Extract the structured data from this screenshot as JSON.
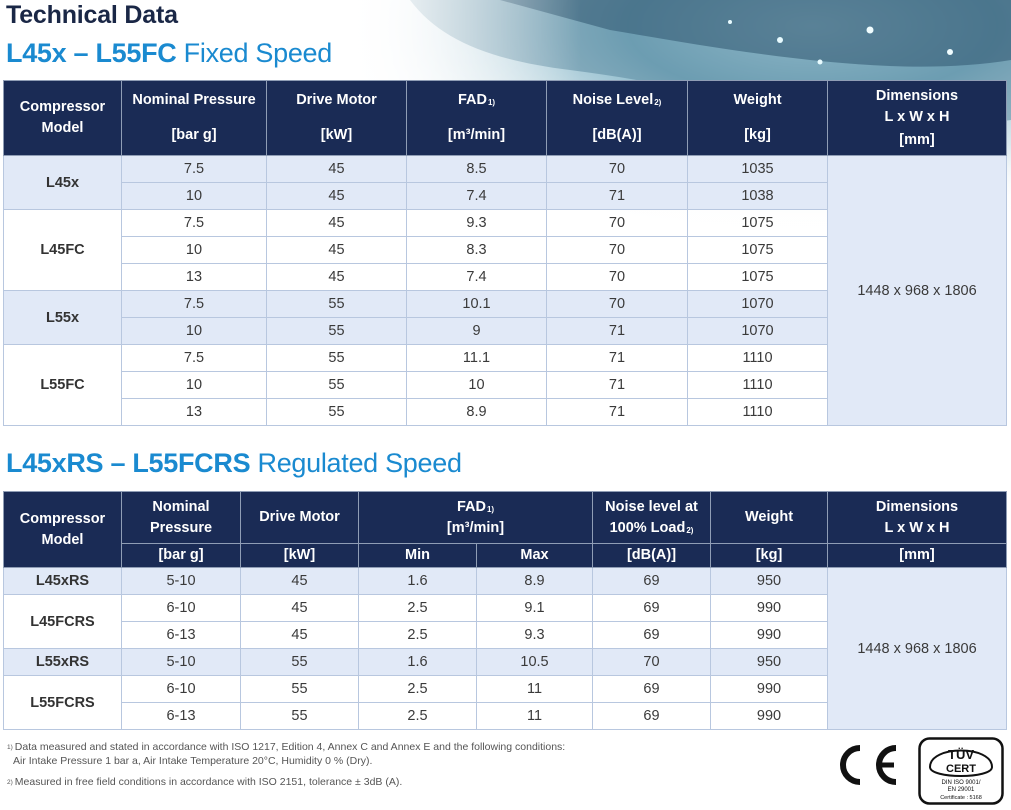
{
  "page_title": "Technical Data",
  "fixed": {
    "title_bold": "L45x – L55FC",
    "title_rest": " Fixed Speed",
    "headers": {
      "model": "Compressor Model",
      "pressure": "Nominal Pressure",
      "pressure_unit": "[bar g]",
      "motor": "Drive Motor",
      "motor_unit": "[kW]",
      "fad": "FAD",
      "fad_note": "1)",
      "fad_unit": "[m³/min]",
      "noise": "Noise Level",
      "noise_note": "2)",
      "noise_unit": "[dB(A)]",
      "weight": "Weight",
      "weight_unit": "[kg]",
      "dimensions": "Dimensions",
      "dimensions_lwh": "L x W x H",
      "dimensions_unit": "[mm]"
    },
    "dimensions_value": "1448 x 968 x 1806",
    "models": [
      {
        "name": "L45x",
        "rows": [
          {
            "pressure": "7.5",
            "motor": "45",
            "fad": "8.5",
            "noise": "70",
            "weight": "1035"
          },
          {
            "pressure": "10",
            "motor": "45",
            "fad": "7.4",
            "noise": "71",
            "weight": "1038"
          }
        ]
      },
      {
        "name": "L45FC",
        "rows": [
          {
            "pressure": "7.5",
            "motor": "45",
            "fad": "9.3",
            "noise": "70",
            "weight": "1075"
          },
          {
            "pressure": "10",
            "motor": "45",
            "fad": "8.3",
            "noise": "70",
            "weight": "1075"
          },
          {
            "pressure": "13",
            "motor": "45",
            "fad": "7.4",
            "noise": "70",
            "weight": "1075"
          }
        ]
      },
      {
        "name": "L55x",
        "rows": [
          {
            "pressure": "7.5",
            "motor": "55",
            "fad": "10.1",
            "noise": "70",
            "weight": "1070"
          },
          {
            "pressure": "10",
            "motor": "55",
            "fad": "9",
            "noise": "71",
            "weight": "1070"
          }
        ]
      },
      {
        "name": "L55FC",
        "rows": [
          {
            "pressure": "7.5",
            "motor": "55",
            "fad": "11.1",
            "noise": "71",
            "weight": "1110"
          },
          {
            "pressure": "10",
            "motor": "55",
            "fad": "10",
            "noise": "71",
            "weight": "1110"
          },
          {
            "pressure": "13",
            "motor": "55",
            "fad": "8.9",
            "noise": "71",
            "weight": "1110"
          }
        ]
      }
    ]
  },
  "regulated": {
    "title_bold": "L45xRS – L55FCRS",
    "title_rest": " Regulated Speed",
    "headers": {
      "model": "Compressor Model",
      "pressure": "Nominal Pressure",
      "pressure_unit": "[bar g]",
      "motor": "Drive Motor",
      "motor_unit": "[kW]",
      "fad": "FAD",
      "fad_note": "1)",
      "fad_unit": "[m³/min]",
      "fad_min": "Min",
      "fad_max": "Max",
      "noise": "Noise level at 100% Load",
      "noise_note": "2)",
      "noise_unit": "[dB(A)]",
      "weight": "Weight",
      "weight_unit": "[kg]",
      "dimensions": "Dimensions",
      "dimensions_lwh": "L x W x H",
      "dimensions_unit": "[mm]"
    },
    "dimensions_value": "1448 x 968 x 1806",
    "models": [
      {
        "name": "L45xRS",
        "rows": [
          {
            "pressure": "5-10",
            "motor": "45",
            "fad_min": "1.6",
            "fad_max": "8.9",
            "noise": "69",
            "weight": "950"
          }
        ]
      },
      {
        "name": "L45FCRS",
        "rows": [
          {
            "pressure": "6-10",
            "motor": "45",
            "fad_min": "2.5",
            "fad_max": "9.1",
            "noise": "69",
            "weight": "990"
          },
          {
            "pressure": "6-13",
            "motor": "45",
            "fad_min": "2.5",
            "fad_max": "9.3",
            "noise": "69",
            "weight": "990"
          }
        ]
      },
      {
        "name": "L55xRS",
        "rows": [
          {
            "pressure": "5-10",
            "motor": "55",
            "fad_min": "1.6",
            "fad_max": "10.5",
            "noise": "70",
            "weight": "950"
          }
        ]
      },
      {
        "name": "L55FCRS",
        "rows": [
          {
            "pressure": "6-10",
            "motor": "55",
            "fad_min": "2.5",
            "fad_max": "11",
            "noise": "69",
            "weight": "990"
          },
          {
            "pressure": "6-13",
            "motor": "55",
            "fad_min": "2.5",
            "fad_max": "11",
            "noise": "69",
            "weight": "990"
          }
        ]
      }
    ]
  },
  "footnotes": [
    {
      "mark": "1)",
      "lines": [
        "Data measured and stated in accordance with ISO 1217, Edition 4, Annex C and Annex E and the following conditions:",
        "Air Intake Pressure 1 bar a, Air Intake Temperature 20°C, Humidity 0 % (Dry)."
      ]
    },
    {
      "mark": "2)",
      "lines": [
        "Measured in free field conditions in accordance with ISO 2151, tolerance ± 3dB (A)."
      ]
    }
  ],
  "certification": {
    "ce_mark": "CE",
    "tuv_logo_text": [
      "TÜV",
      "CERT",
      "DIN ISO 9001/",
      "EN 29001",
      "Certificate : 5168"
    ]
  },
  "colors": {
    "header_navy": "#1a2b55",
    "accent_blue": "#1a8ad0",
    "row_tint": "#e1e9f7"
  }
}
